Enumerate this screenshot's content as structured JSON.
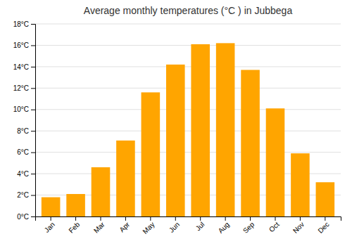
{
  "chart_data": {
    "type": "bar",
    "title": "Average monthly temperatures (°C ) in Jubbega",
    "categories": [
      "Jan",
      "Feb",
      "Mar",
      "Apr",
      "May",
      "Jun",
      "Jul",
      "Aug",
      "Sep",
      "Oct",
      "Nov",
      "Dec"
    ],
    "values": [
      1.8,
      2.1,
      4.6,
      7.1,
      11.6,
      14.2,
      16.1,
      16.2,
      13.7,
      10.1,
      5.9,
      3.2
    ],
    "color": "#FFA500",
    "ylim": [
      0,
      18
    ],
    "yticks": [
      {
        "value": 0,
        "label": "0°C"
      },
      {
        "value": 2,
        "label": "2°C"
      },
      {
        "value": 4,
        "label": "4°C"
      },
      {
        "value": 6,
        "label": "6°C"
      },
      {
        "value": 8,
        "label": "8°C"
      },
      {
        "value": 10,
        "label": "10°C"
      },
      {
        "value": 12,
        "label": "12°C"
      },
      {
        "value": 14,
        "label": "14°C"
      },
      {
        "value": 16,
        "label": "16°C"
      },
      {
        "value": 18,
        "label": "18°C"
      }
    ],
    "grid": true
  }
}
